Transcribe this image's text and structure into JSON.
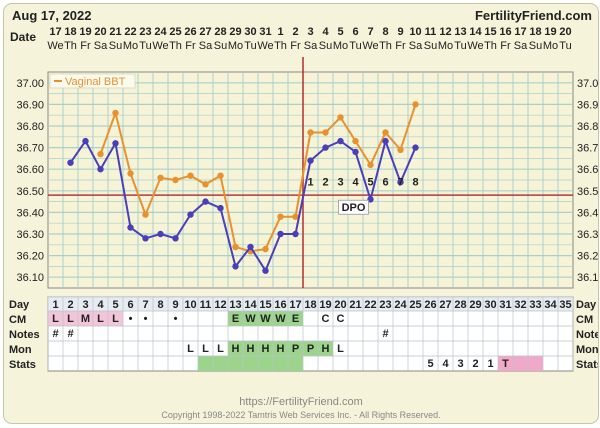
{
  "header": {
    "date": "Aug 17, 2022",
    "brand": "FertilityFriend.com",
    "date_row_label": "Date"
  },
  "chart_data": {
    "type": "line",
    "x_dates": [
      "17",
      "18",
      "19",
      "20",
      "21",
      "22",
      "23",
      "24",
      "25",
      "26",
      "27",
      "28",
      "29",
      "30",
      "31",
      "1",
      "2",
      "3",
      "4",
      "5",
      "6",
      "7",
      "8",
      "9",
      "10",
      "11",
      "12",
      "13",
      "14",
      "15",
      "16",
      "17",
      "18",
      "19",
      "20"
    ],
    "x_weekdays": [
      "We",
      "Th",
      "Fr",
      "Sa",
      "Su",
      "Mo",
      "Tu",
      "We",
      "Th",
      "Fr",
      "Sa",
      "Su",
      "Mo",
      "Tu",
      "We",
      "Th",
      "Fr",
      "Sa",
      "Su",
      "Mo",
      "Tu",
      "We",
      "Th",
      "Fr",
      "Sa",
      "Su",
      "Mo",
      "Tu",
      "We",
      "Th",
      "Fr",
      "Sa",
      "Su",
      "Mo",
      "Tu"
    ],
    "cycle_days": [
      1,
      2,
      3,
      4,
      5,
      6,
      7,
      8,
      9,
      10,
      11,
      12,
      13,
      14,
      15,
      16,
      17,
      18,
      19,
      20,
      21,
      22,
      23,
      24,
      25,
      26,
      27,
      28,
      29,
      30,
      31,
      32,
      33,
      34,
      35
    ],
    "y_ticks": [
      "37.00",
      "36.90",
      "36.80",
      "36.70",
      "36.60",
      "36.50",
      "36.40",
      "36.30",
      "36.20",
      "36.10"
    ],
    "ylim": [
      36.05,
      37.05
    ],
    "legend": "Vaginal BBT",
    "series": [
      {
        "name": "Vaginal BBT",
        "color": "#e8912e",
        "values": [
          null,
          null,
          null,
          36.67,
          36.86,
          36.58,
          36.39,
          36.56,
          36.55,
          36.57,
          36.53,
          36.57,
          36.24,
          36.22,
          36.23,
          36.38,
          36.38,
          36.77,
          36.77,
          36.84,
          36.73,
          36.62,
          36.77,
          36.69,
          36.9,
          null,
          null,
          null,
          null,
          null,
          null,
          null,
          null,
          null,
          null
        ]
      },
      {
        "color": "#4a3fb8",
        "values": [
          null,
          36.63,
          36.73,
          36.6,
          36.72,
          36.33,
          36.28,
          36.3,
          36.28,
          36.39,
          36.45,
          36.42,
          36.15,
          36.24,
          36.13,
          36.3,
          36.3,
          36.64,
          36.7,
          36.73,
          36.68,
          36.46,
          36.73,
          36.54,
          36.7,
          null,
          null,
          null,
          null,
          null,
          null,
          null,
          null,
          null,
          null
        ]
      }
    ],
    "coverline": 36.48,
    "ovulation_day": 17,
    "dpo_labels": [
      "1",
      "2",
      "3",
      "4",
      "5",
      "6",
      "7",
      "8"
    ],
    "dpo_text": "DPO",
    "grid": true
  },
  "rows": {
    "day_label": "Day",
    "cm_label": "CM",
    "notes_label": "Notes",
    "mon_label": "Mon",
    "stats_label": "Stats",
    "cm": [
      "L",
      "L",
      "M",
      "L",
      "L",
      "•",
      "•",
      "",
      "•",
      "",
      "",
      "",
      "E",
      "W",
      "W",
      "W",
      "E",
      "",
      "C",
      "C",
      "",
      "",
      "",
      "",
      "",
      "",
      "",
      "",
      "",
      "",
      "",
      "",
      "",
      "",
      ""
    ],
    "notes": [
      "#",
      "#",
      "",
      "",
      "",
      "",
      "",
      "",
      "",
      "",
      "",
      "",
      "",
      "",
      "",
      "",
      "",
      "",
      "",
      "",
      "",
      "",
      "#",
      "",
      "",
      "",
      "",
      "",
      "",
      "",
      "",
      "",
      "",
      "",
      ""
    ],
    "mon": [
      "",
      "",
      "",
      "",
      "",
      "",
      "",
      "",
      "",
      "L",
      "L",
      "L",
      "H",
      "H",
      "H",
      "H",
      "P",
      "P",
      "H",
      "L",
      "",
      "",
      "",
      "",
      "",
      "",
      "",
      "",
      "",
      "",
      "",
      "",
      "",
      "",
      ""
    ],
    "stats": [
      "",
      "",
      "",
      "",
      "",
      "",
      "",
      "",
      "",
      "",
      "",
      "",
      "",
      "",
      "",
      "",
      "",
      "",
      "",
      "",
      "",
      "",
      "",
      "",
      "",
      "5",
      "4",
      "3",
      "2",
      "1",
      "T",
      "",
      "",
      "",
      ""
    ]
  },
  "footer": {
    "url": "https://FertilityFriend.com",
    "copyright": "Copyright 1998-2022 Tamtris Web Services Inc. - All Rights Reserved."
  },
  "colors": {
    "grid": "#a9d1cc",
    "plot_bg": "#f6f3d6",
    "coverline": "#b53a3a",
    "cm_fertile": "#9bd48a",
    "cm_menses": "#f2c6d8",
    "stats_pink": "#f0a9c8",
    "stats_green": "#9bd48a"
  }
}
